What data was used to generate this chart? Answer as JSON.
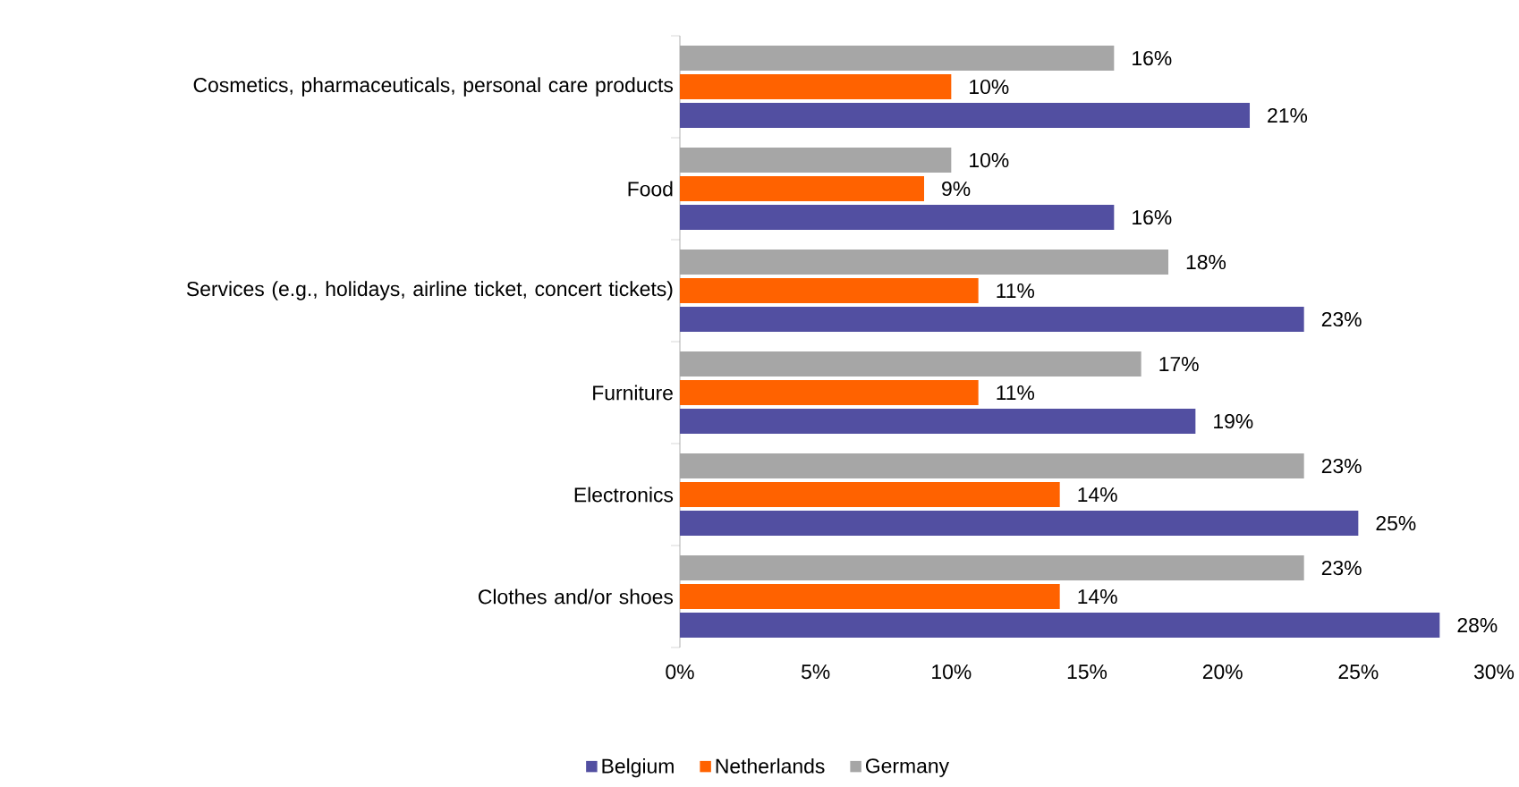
{
  "chart_data": {
    "type": "bar",
    "orientation": "horizontal",
    "categories": [
      "Cosmetics, pharmaceuticals, personal care products",
      "Food",
      "Services (e.g., holidays, airline ticket, concert tickets)",
      "Furniture",
      "Electronics",
      "Clothes and/or shoes"
    ],
    "series": [
      {
        "name": "Belgium",
        "color": "#524fa1",
        "values": [
          21,
          16,
          23,
          19,
          25,
          28
        ],
        "value_labels": [
          "21%",
          "16%",
          "23%",
          "19%",
          "25%",
          "28%"
        ]
      },
      {
        "name": "Netherlands",
        "color": "#ff6200",
        "values": [
          10,
          9,
          11,
          11,
          14,
          14
        ],
        "value_labels": [
          "10%",
          "9%",
          "11%",
          "11%",
          "14%",
          "14%"
        ]
      },
      {
        "name": "Germany",
        "color": "#a6a6a6",
        "values": [
          16,
          10,
          18,
          17,
          23,
          23
        ],
        "value_labels": [
          "16%",
          "10%",
          "18%",
          "17%",
          "23%",
          "23%"
        ]
      }
    ],
    "xlim": [
      0,
      30
    ],
    "xticks": [
      {
        "value": 0,
        "label": "0%"
      },
      {
        "value": 5,
        "label": "5%"
      },
      {
        "value": 10,
        "label": "10%"
      },
      {
        "value": 15,
        "label": "15%"
      },
      {
        "value": 20,
        "label": "20%"
      },
      {
        "value": 25,
        "label": "25%"
      },
      {
        "value": 30,
        "label": "30%"
      }
    ],
    "legend": "bottom"
  }
}
